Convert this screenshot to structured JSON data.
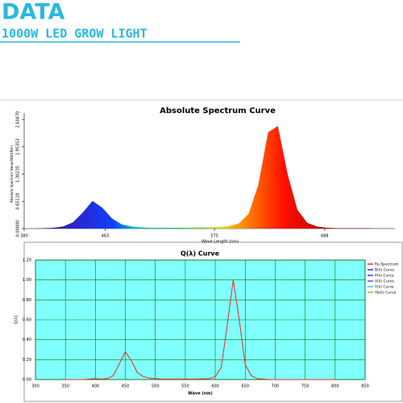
{
  "header": {
    "title": "DATA",
    "subtitle": "1000W LED GROW LIGHT"
  },
  "chart_data": [
    {
      "type": "area",
      "title": "Absolute Spectrum Curve",
      "y_label": "Absolute Spectrum Value(Watt/Nm)",
      "x_label": "Wave Length (nm)",
      "x": [
        380,
        390,
        400,
        410,
        420,
        430,
        440,
        450,
        460,
        470,
        480,
        490,
        500,
        510,
        520,
        530,
        540,
        550,
        560,
        570,
        580,
        590,
        600,
        610,
        620,
        630,
        640,
        650,
        660,
        670,
        680,
        690,
        700,
        710,
        720,
        730,
        740,
        750,
        760
      ],
      "values": [
        0,
        0,
        0.01,
        0.02,
        0.05,
        0.15,
        0.38,
        0.66,
        0.5,
        0.24,
        0.1,
        0.05,
        0.03,
        0.02,
        0.02,
        0.02,
        0.02,
        0.02,
        0.03,
        0.03,
        0.04,
        0.06,
        0.12,
        0.35,
        1.05,
        2.3,
        2.45,
        1.3,
        0.45,
        0.14,
        0.05,
        0.02,
        0.01,
        0.01,
        0.01,
        0.01,
        0,
        0,
        0
      ],
      "xlim": [
        380,
        760
      ],
      "xticks": [
        380,
        463,
        575,
        688
      ],
      "ylim": [
        0,
        2.6047
      ],
      "yticks": [
        {
          "value": 0,
          "label": "0.00000"
        },
        0.65118,
        1.30235,
        1.95353,
        {
          "value": 2.6047,
          "label": "2.60470"
        }
      ]
    },
    {
      "type": "line",
      "title": "Q(λ) Curve",
      "y_label": "Q(λ)",
      "x_label": "Wave (nm)",
      "x": [
        350,
        360,
        370,
        380,
        390,
        400,
        410,
        420,
        430,
        440,
        450,
        460,
        470,
        480,
        490,
        500,
        510,
        520,
        530,
        540,
        550,
        560,
        570,
        580,
        590,
        600,
        610,
        620,
        630,
        640,
        650,
        660,
        670,
        680,
        690,
        700,
        710,
        720,
        730,
        740,
        750,
        760,
        770,
        780,
        790,
        800
      ],
      "series": [
        {
          "name": "Re-Spectrum",
          "color": "#e03020",
          "values": [
            0,
            0,
            0,
            0,
            0.005,
            0.01,
            0.005,
            0.01,
            0.04,
            0.16,
            0.28,
            0.19,
            0.07,
            0.03,
            0.015,
            0.01,
            0.005,
            0.005,
            0.005,
            0.005,
            0.005,
            0.005,
            0.005,
            0.008,
            0.01,
            0.03,
            0.12,
            0.55,
            1.0,
            0.6,
            0.15,
            0.04,
            0.01,
            0.005,
            0,
            0,
            0,
            0,
            0,
            0,
            0,
            0,
            0,
            0,
            0,
            0
          ]
        }
      ],
      "legend_entries": [
        {
          "name": "B(λ) Curve",
          "color": "#2030c0"
        },
        {
          "name": "P(λ) Curve",
          "color": "#3040d0"
        },
        {
          "name": "V(λ) Curve",
          "color": "#8040c0"
        },
        {
          "name": "Y(λ) Curve",
          "color": "#40c0e0"
        },
        {
          "name": "Yb(λ) Curve",
          "color": "#80c040"
        }
      ],
      "xlim": [
        300,
        850
      ],
      "xticks": [
        300,
        350,
        400,
        450,
        500,
        550,
        600,
        650,
        700,
        750,
        800,
        850
      ],
      "ylim": [
        0,
        1.2
      ],
      "yticks": [
        {
          "value": 0,
          "label": "0.00"
        },
        {
          "value": 0.2,
          "label": "0.20"
        },
        {
          "value": 0.4,
          "label": "0.40"
        },
        {
          "value": 0.6,
          "label": "0.60"
        },
        {
          "value": 0.8,
          "label": "0.80"
        },
        {
          "value": 1,
          "label": "1.00"
        },
        {
          "value": 1.2,
          "label": "1.20"
        }
      ],
      "background": "#80ffff",
      "grid_color": "#008000",
      "grid": true
    }
  ]
}
